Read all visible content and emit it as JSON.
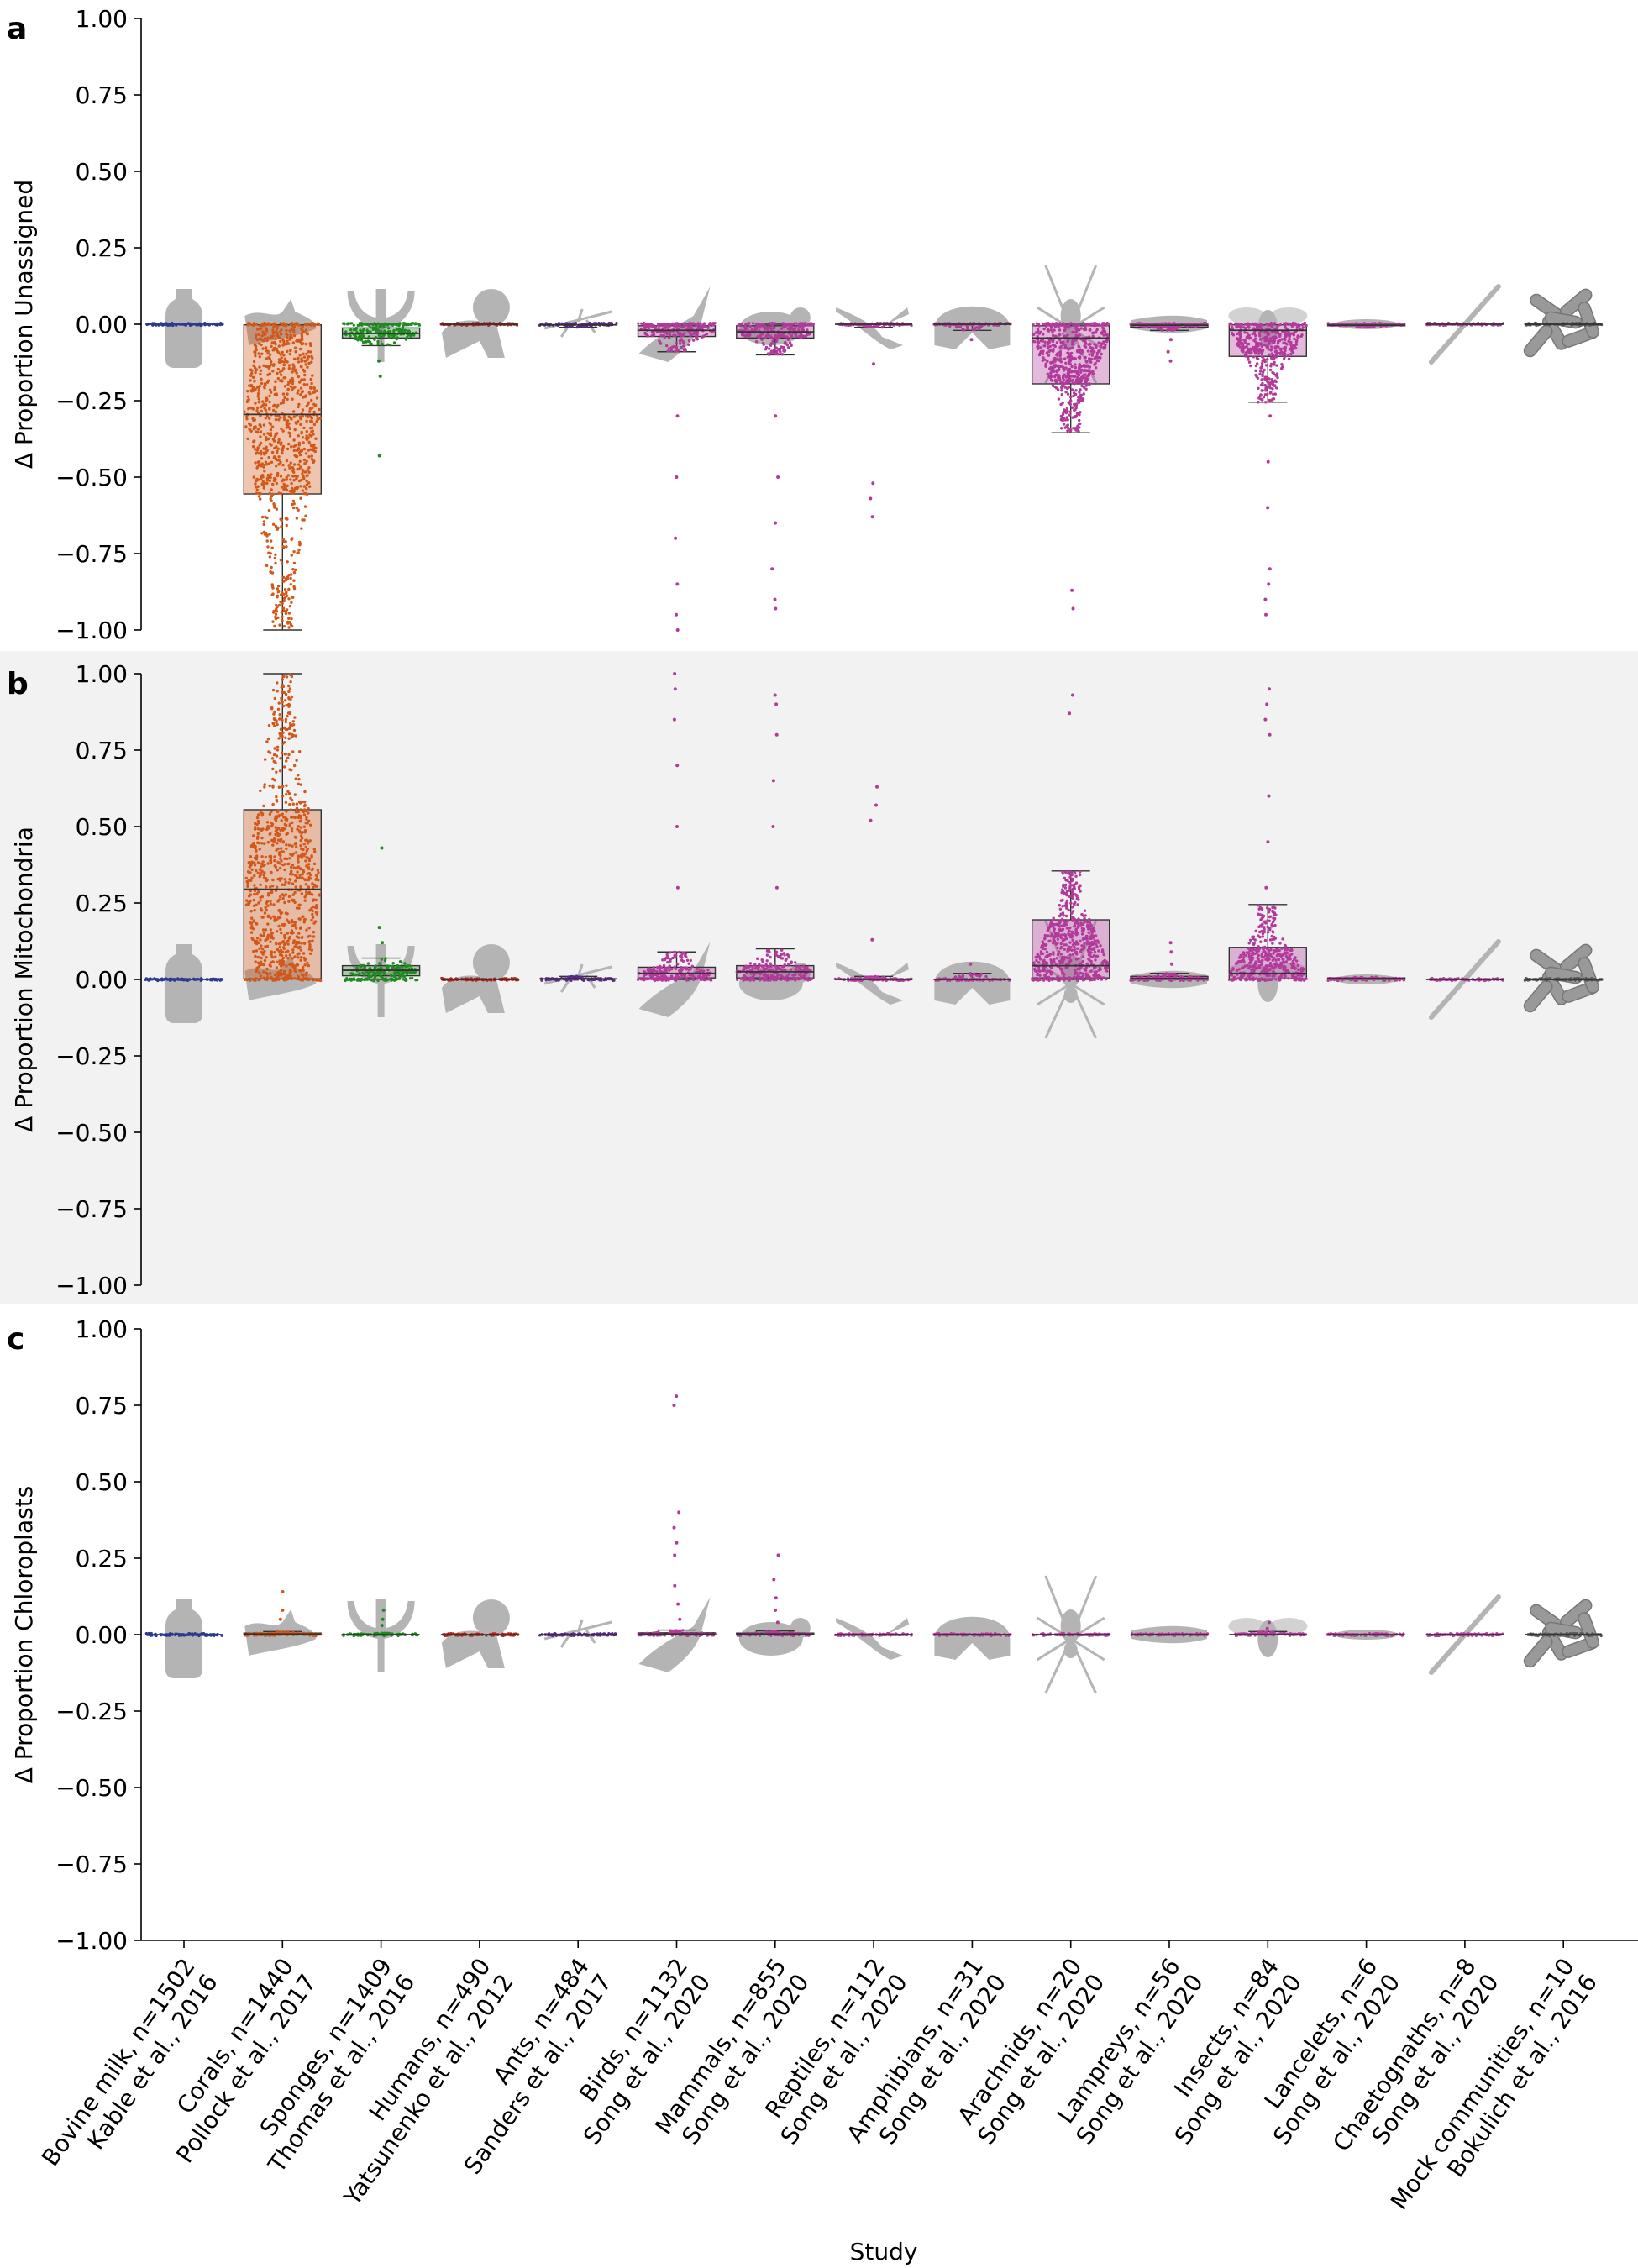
{
  "chart_data": {
    "type": "box-swarm",
    "xlabel": "Study",
    "yticks": [
      1.0,
      0.75,
      0.5,
      0.25,
      0.0,
      -0.25,
      -0.5,
      -0.75,
      -1.0
    ],
    "ytick_labels": [
      "1.00",
      "0.75",
      "0.50",
      "0.25",
      "0.00",
      "−0.25",
      "−0.50",
      "−0.75",
      "−1.00"
    ],
    "ylim": [
      -1.0,
      1.0
    ],
    "categories": [
      {
        "line1": "Bovine milk, n=1502",
        "line2": "Kable et al., 2016",
        "silhouette": "milk-bottle-icon",
        "color": "#2b3a8c"
      },
      {
        "line1": "Corals, n=1440",
        "line2": "Pollock et al., 2017",
        "silhouette": "coral-icon",
        "color": "#d2581a"
      },
      {
        "line1": "Sponges, n=1409",
        "line2": "Thomas et al., 2016",
        "silhouette": "sponge-icon",
        "color": "#218a21"
      },
      {
        "line1": "Humans, n=490",
        "line2": "Yatsunenko et al., 2012",
        "silhouette": "baby-icon",
        "color": "#b0241c"
      },
      {
        "line1": "Ants, n=484",
        "line2": "Sanders et al., 2017",
        "silhouette": "ant-icon",
        "color": "#5b2a86"
      },
      {
        "line1": "Birds, n=1132",
        "line2": "Song et al., 2020",
        "silhouette": "bird-icon",
        "color": "#b23a9a"
      },
      {
        "line1": "Mammals, n=855",
        "line2": "Song et al., 2020",
        "silhouette": "rodent-icon",
        "color": "#b23a9a"
      },
      {
        "line1": "Reptiles, n=112",
        "line2": "Song et al., 2020",
        "silhouette": "lizard-icon",
        "color": "#b23a9a"
      },
      {
        "line1": "Amphibians, n=31",
        "line2": "Song et al., 2020",
        "silhouette": "frog-icon",
        "color": "#b23a9a"
      },
      {
        "line1": "Arachnids, n=20",
        "line2": "Song et al., 2020",
        "silhouette": "spider-icon",
        "color": "#b23a9a"
      },
      {
        "line1": "Lampreys, n=56",
        "line2": "Song et al., 2020",
        "silhouette": "lamprey-icon",
        "color": "#b23a9a"
      },
      {
        "line1": "Insects, n=84",
        "line2": "Song et al., 2020",
        "silhouette": "bee-icon",
        "color": "#b23a9a"
      },
      {
        "line1": "Lancelets, n=6",
        "line2": "Song et al., 2020",
        "silhouette": "lancelet-icon",
        "color": "#b23a9a"
      },
      {
        "line1": "Chaetognaths, n=8",
        "line2": "Song et al., 2020",
        "silhouette": "arrow-worm-icon",
        "color": "#b23a9a"
      },
      {
        "line1": "Mock communities, n=10",
        "line2": "Bokulich et al., 2016",
        "silhouette": "bacteria-icon",
        "color": "#555555"
      }
    ],
    "panels": [
      {
        "letter": "a",
        "ylabel": "Δ Proportion Unassigned",
        "shaded": false,
        "sign": -1,
        "boxes": [
          {
            "q1": 0,
            "med": 0,
            "q3": 0,
            "lo": 0,
            "hi": 0,
            "outliers": []
          },
          {
            "q1": -0.555,
            "med": -0.295,
            "q3": -0.002,
            "lo": -1.0,
            "hi": 0.0,
            "outliers": []
          },
          {
            "q1": -0.045,
            "med": -0.03,
            "q3": -0.012,
            "lo": -0.07,
            "hi": 0.0,
            "outliers": [
              -0.12,
              -0.17,
              -0.43
            ]
          },
          {
            "q1": 0,
            "med": 0,
            "q3": 0,
            "lo": 0,
            "hi": 0,
            "outliers": []
          },
          {
            "q1": -0.004,
            "med": -0.002,
            "q3": 0,
            "lo": -0.01,
            "hi": 0,
            "outliers": []
          },
          {
            "q1": -0.04,
            "med": -0.02,
            "q3": -0.005,
            "lo": -0.09,
            "hi": 0,
            "outliers": [
              -0.3,
              -0.5,
              -0.7,
              -0.85,
              -0.95,
              -1.0
            ]
          },
          {
            "q1": -0.045,
            "med": -0.025,
            "q3": -0.005,
            "lo": -0.1,
            "hi": 0,
            "outliers": [
              -0.3,
              -0.5,
              -0.65,
              -0.8,
              -0.9,
              -0.93
            ]
          },
          {
            "q1": 0,
            "med": 0,
            "q3": 0,
            "lo": -0.01,
            "hi": 0,
            "outliers": [
              -0.13,
              -0.52,
              -0.57,
              -0.63
            ]
          },
          {
            "q1": 0,
            "med": 0,
            "q3": 0,
            "lo": -0.02,
            "hi": 0,
            "outliers": [
              -0.05
            ]
          },
          {
            "q1": -0.195,
            "med": -0.045,
            "q3": -0.005,
            "lo": -0.355,
            "hi": 0,
            "outliers": [
              -0.87,
              -0.93
            ]
          },
          {
            "q1": -0.01,
            "med": -0.003,
            "q3": 0,
            "lo": -0.02,
            "hi": 0,
            "outliers": [
              -0.05,
              -0.09,
              -0.12
            ]
          },
          {
            "q1": -0.105,
            "med": -0.02,
            "q3": -0.002,
            "lo": -0.255,
            "hi": 0,
            "outliers": [
              -0.3,
              -0.45,
              -0.6,
              -0.8,
              -0.85,
              -0.9,
              -0.95
            ]
          },
          {
            "q1": -0.005,
            "med": -0.003,
            "q3": 0,
            "lo": -0.008,
            "hi": 0,
            "outliers": []
          },
          {
            "q1": 0,
            "med": 0,
            "q3": 0,
            "lo": 0,
            "hi": 0,
            "outliers": []
          },
          {
            "q1": 0,
            "med": 0,
            "q3": 0,
            "lo": 0,
            "hi": 0,
            "outliers": []
          }
        ]
      },
      {
        "letter": "b",
        "ylabel": "Δ Proportion Mitochondria",
        "shaded": true,
        "sign": 1,
        "boxes": [
          {
            "q1": 0,
            "med": 0,
            "q3": 0,
            "lo": 0,
            "hi": 0,
            "outliers": []
          },
          {
            "q1": 0.002,
            "med": 0.295,
            "q3": 0.555,
            "lo": 0.0,
            "hi": 1.0,
            "outliers": []
          },
          {
            "q1": 0.012,
            "med": 0.03,
            "q3": 0.045,
            "lo": 0.0,
            "hi": 0.07,
            "outliers": [
              0.12,
              0.17,
              0.43
            ]
          },
          {
            "q1": 0,
            "med": 0,
            "q3": 0,
            "lo": 0,
            "hi": 0,
            "outliers": []
          },
          {
            "q1": 0,
            "med": 0.002,
            "q3": 0.004,
            "lo": 0,
            "hi": 0.01,
            "outliers": []
          },
          {
            "q1": 0.005,
            "med": 0.02,
            "q3": 0.04,
            "lo": 0,
            "hi": 0.09,
            "outliers": [
              0.3,
              0.5,
              0.7,
              0.85,
              0.95,
              1.0
            ]
          },
          {
            "q1": 0.005,
            "med": 0.025,
            "q3": 0.045,
            "lo": 0,
            "hi": 0.1,
            "outliers": [
              0.3,
              0.5,
              0.65,
              0.8,
              0.9,
              0.93
            ]
          },
          {
            "q1": 0,
            "med": 0,
            "q3": 0,
            "lo": 0,
            "hi": 0.01,
            "outliers": [
              0.13,
              0.52,
              0.57,
              0.63
            ]
          },
          {
            "q1": 0,
            "med": 0,
            "q3": 0,
            "lo": 0,
            "hi": 0.02,
            "outliers": [
              0.05
            ]
          },
          {
            "q1": 0.005,
            "med": 0.045,
            "q3": 0.195,
            "lo": 0,
            "hi": 0.355,
            "outliers": [
              0.87,
              0.93
            ]
          },
          {
            "q1": 0,
            "med": 0.003,
            "q3": 0.01,
            "lo": 0,
            "hi": 0.02,
            "outliers": [
              0.05,
              0.09,
              0.12
            ]
          },
          {
            "q1": 0.002,
            "med": 0.02,
            "q3": 0.105,
            "lo": 0,
            "hi": 0.245,
            "outliers": [
              0.3,
              0.45,
              0.6,
              0.8,
              0.85,
              0.9,
              0.95
            ]
          },
          {
            "q1": 0,
            "med": 0.003,
            "q3": 0.005,
            "lo": 0,
            "hi": 0.008,
            "outliers": []
          },
          {
            "q1": 0,
            "med": 0,
            "q3": 0,
            "lo": 0,
            "hi": 0,
            "outliers": []
          },
          {
            "q1": 0,
            "med": 0,
            "q3": 0,
            "lo": 0,
            "hi": 0,
            "outliers": []
          }
        ]
      },
      {
        "letter": "c",
        "ylabel": "Δ Proportion Chloroplasts",
        "shaded": false,
        "sign": 1,
        "boxes": [
          {
            "q1": 0,
            "med": 0,
            "q3": 0,
            "lo": 0,
            "hi": 0,
            "outliers": []
          },
          {
            "q1": 0,
            "med": 0.002,
            "q3": 0.005,
            "lo": 0,
            "hi": 0.01,
            "outliers": [
              0.05,
              0.08,
              0.14
            ]
          },
          {
            "q1": 0,
            "med": 0,
            "q3": 0.002,
            "lo": 0,
            "hi": 0.005,
            "outliers": [
              0.03,
              0.05,
              0.08
            ]
          },
          {
            "q1": 0,
            "med": 0,
            "q3": 0,
            "lo": 0,
            "hi": 0,
            "outliers": []
          },
          {
            "q1": 0,
            "med": 0,
            "q3": 0,
            "lo": 0,
            "hi": 0,
            "outliers": []
          },
          {
            "q1": 0,
            "med": 0.002,
            "q3": 0.006,
            "lo": 0,
            "hi": 0.015,
            "outliers": [
              0.05,
              0.1,
              0.16,
              0.26,
              0.3,
              0.35,
              0.4,
              0.75,
              0.78
            ]
          },
          {
            "q1": 0,
            "med": 0.002,
            "q3": 0.005,
            "lo": 0,
            "hi": 0.012,
            "outliers": [
              0.04,
              0.08,
              0.12,
              0.18,
              0.26
            ]
          },
          {
            "q1": 0,
            "med": 0,
            "q3": 0,
            "lo": 0,
            "hi": 0,
            "outliers": []
          },
          {
            "q1": 0,
            "med": 0,
            "q3": 0,
            "lo": 0,
            "hi": 0,
            "outliers": []
          },
          {
            "q1": 0,
            "med": 0,
            "q3": 0,
            "lo": 0,
            "hi": 0,
            "outliers": []
          },
          {
            "q1": 0,
            "med": 0,
            "q3": 0,
            "lo": 0,
            "hi": 0,
            "outliers": []
          },
          {
            "q1": 0,
            "med": 0,
            "q3": 0.002,
            "lo": 0,
            "hi": 0.01,
            "outliers": [
              0.02,
              0.04
            ]
          },
          {
            "q1": 0,
            "med": 0,
            "q3": 0,
            "lo": 0,
            "hi": 0,
            "outliers": []
          },
          {
            "q1": 0,
            "med": 0,
            "q3": 0,
            "lo": 0,
            "hi": 0,
            "outliers": []
          },
          {
            "q1": 0,
            "med": 0,
            "q3": 0,
            "lo": 0,
            "hi": 0,
            "outliers": []
          }
        ]
      }
    ]
  }
}
